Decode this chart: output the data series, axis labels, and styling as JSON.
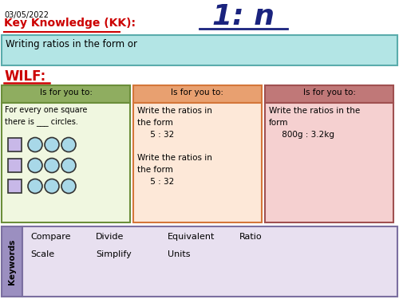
{
  "date": "03/05/2022",
  "title": "1: n",
  "kk_label": "Key Knowledge (KK):",
  "kk_text": "Writing ratios in the form or",
  "wilf_label": "WILF:",
  "col1_header": "Is for you to:",
  "col1_body": "For every one square\nthere is ___ circles.",
  "col2_header": "Is for you to:",
  "col2_body": "Write the ratios in\nthe form\n     5 : 32\n\nWrite the ratios in\nthe form\n     5 : 32",
  "col3_header": "Is for you to:",
  "col3_body": "Write the ratios in the\nform\n     800g : 3.2kg",
  "keywords_label": "Keywords",
  "keywords_row1": [
    "Compare",
    "Divide",
    "Equivalent",
    "Ratio"
  ],
  "keywords_row2": [
    "Scale",
    "Simplify",
    "Units"
  ],
  "bg_color": "#ffffff",
  "kk_color": "#cc0000",
  "title_color": "#1a237e",
  "wilf_color": "#cc0000",
  "kk_box_bg": "#b3e5e5",
  "kk_box_border": "#5aacac",
  "col1_header_bg": "#8fad60",
  "col1_body_bg": "#f0f7e0",
  "col1_border": "#6b8e3a",
  "col2_header_bg": "#e8a070",
  "col2_body_bg": "#fde8d8",
  "col2_border": "#d4763a",
  "col3_header_bg": "#c07878",
  "col3_body_bg": "#f5d0d0",
  "col3_border": "#a05050",
  "kw_label_bg": "#9b8fc0",
  "kw_body_bg": "#e8e0f0",
  "kw_border": "#7b6fa0",
  "sq_color": "#c8b8e8",
  "circle_fill": "#a8d8e8",
  "circle_edge": "#333333"
}
